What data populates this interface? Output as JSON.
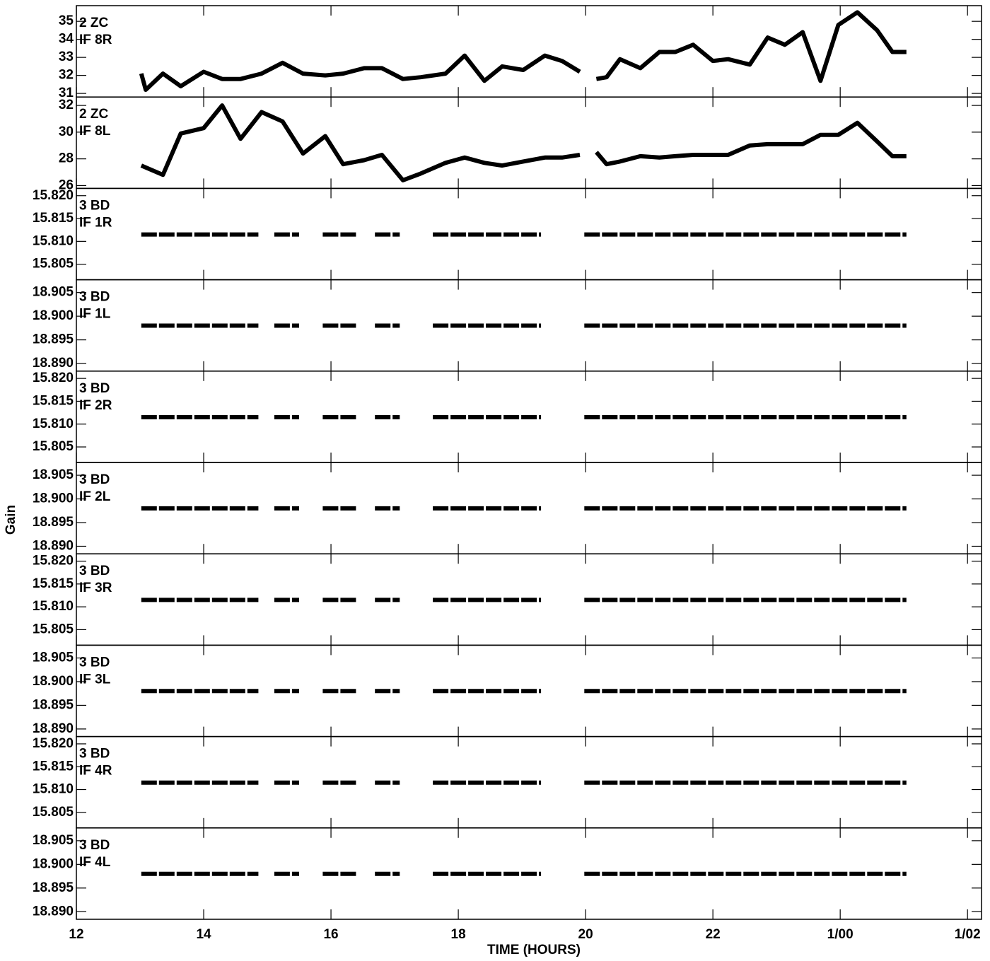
{
  "chart_data": {
    "type": "line",
    "xlabel": "TIME (HOURS)",
    "ylabel": "Gain",
    "xlim": [
      12,
      26.22
    ],
    "xticks": [
      12,
      14,
      16,
      18,
      20,
      22,
      {
        "value": 24,
        "label": "1/00"
      },
      {
        "value": 26,
        "label": "1/02"
      }
    ],
    "color": "#000000",
    "panels": [
      {
        "station": "2 ZC",
        "label": "IF 8R",
        "ylim": [
          30.8,
          35.87
        ],
        "yticks": [
          31,
          32,
          33,
          34,
          35
        ],
        "x": [
          13.02,
          13.09,
          13.36,
          13.64,
          14.0,
          14.29,
          14.58,
          14.91,
          15.24,
          15.56,
          15.91,
          16.19,
          16.52,
          16.8,
          17.13,
          17.41,
          17.8,
          18.1,
          18.41,
          18.69,
          19.02,
          19.36,
          19.63,
          19.91,
          null,
          20.17,
          20.33,
          20.54,
          20.86,
          21.16,
          21.41,
          21.69,
          22.0,
          22.24,
          22.58,
          22.86,
          23.13,
          23.41,
          23.69,
          23.97,
          24.27,
          24.58,
          24.82,
          25.04
        ],
        "values": [
          32.1,
          31.2,
          32.1,
          31.4,
          32.2,
          31.8,
          31.8,
          32.1,
          32.7,
          32.1,
          32.0,
          32.1,
          32.4,
          32.4,
          31.8,
          31.9,
          32.1,
          33.1,
          31.7,
          32.5,
          32.3,
          33.1,
          32.8,
          32.2,
          null,
          31.8,
          31.9,
          32.9,
          32.4,
          33.3,
          33.3,
          33.7,
          32.8,
          32.9,
          32.6,
          34.1,
          33.7,
          34.4,
          31.7,
          34.8,
          35.5,
          34.5,
          33.3,
          33.3
        ]
      },
      {
        "station": "2 ZC",
        "label": "IF 8L",
        "ylim": [
          25.79,
          32.63
        ],
        "yticks": [
          26,
          28,
          30,
          32
        ],
        "x": [
          13.02,
          13.36,
          13.64,
          14.0,
          14.29,
          14.58,
          14.91,
          15.24,
          15.56,
          15.91,
          16.19,
          16.52,
          16.8,
          17.13,
          17.41,
          17.8,
          18.1,
          18.41,
          18.69,
          19.02,
          19.36,
          19.63,
          19.91,
          null,
          20.17,
          20.33,
          20.54,
          20.86,
          21.16,
          21.41,
          21.69,
          22.0,
          22.24,
          22.58,
          22.86,
          23.13,
          23.41,
          23.69,
          23.97,
          24.27,
          24.58,
          24.82,
          25.04
        ],
        "values": [
          27.5,
          26.8,
          29.9,
          30.3,
          32.0,
          29.5,
          31.5,
          30.8,
          28.4,
          29.7,
          27.6,
          27.9,
          28.3,
          26.4,
          26.9,
          27.7,
          28.1,
          27.7,
          27.5,
          27.8,
          28.1,
          28.1,
          28.3,
          null,
          28.5,
          27.6,
          27.8,
          28.2,
          28.1,
          28.2,
          28.3,
          28.3,
          28.3,
          29.0,
          29.1,
          29.1,
          29.1,
          29.8,
          29.8,
          30.7,
          29.3,
          28.2,
          28.2
        ]
      },
      {
        "station": "3 BD",
        "label": "IF 1R",
        "ylim": [
          15.8016,
          15.8216
        ],
        "yticks": [
          {
            "value": 15.82,
            "label": "15.820"
          },
          15.815,
          {
            "value": 15.81,
            "label": "15.810"
          },
          15.805
        ],
        "x": [
          13.02,
          14.86,
          null,
          15.11,
          15.5,
          null,
          15.87,
          16.41,
          null,
          16.69,
          17.08,
          null,
          17.6,
          19.3,
          null,
          19.98,
          25.04
        ],
        "values": [
          15.8115,
          15.8115,
          null,
          15.8115,
          15.8115,
          null,
          15.8115,
          15.8115,
          null,
          15.8115,
          15.8115,
          null,
          15.8115,
          15.8115,
          null,
          15.8115,
          15.8115
        ]
      },
      {
        "station": "3 BD",
        "label": "IF 1L",
        "ylim": [
          18.8884,
          18.9077
        ],
        "yticks": [
          18.905,
          {
            "value": 18.9,
            "label": "18.900"
          },
          18.895,
          {
            "value": 18.89,
            "label": "18.890"
          }
        ],
        "x": [
          13.02,
          14.86,
          null,
          15.11,
          15.5,
          null,
          15.87,
          16.41,
          null,
          16.69,
          17.08,
          null,
          17.6,
          19.3,
          null,
          19.98,
          25.04
        ],
        "values": [
          18.898,
          18.898,
          null,
          18.898,
          18.898,
          null,
          18.898,
          18.898,
          null,
          18.898,
          18.898,
          null,
          18.898,
          18.898,
          null,
          18.898,
          18.898
        ]
      },
      {
        "station": "3 BD",
        "label": "IF 2R",
        "ylim": [
          15.8016,
          15.8216
        ],
        "yticks": [
          {
            "value": 15.82,
            "label": "15.820"
          },
          15.815,
          {
            "value": 15.81,
            "label": "15.810"
          },
          15.805
        ],
        "x": [
          13.02,
          14.86,
          null,
          15.11,
          15.5,
          null,
          15.87,
          16.41,
          null,
          16.69,
          17.08,
          null,
          17.6,
          19.3,
          null,
          19.98,
          25.04
        ],
        "values": [
          15.8115,
          15.8115,
          null,
          15.8115,
          15.8115,
          null,
          15.8115,
          15.8115,
          null,
          15.8115,
          15.8115,
          null,
          15.8115,
          15.8115,
          null,
          15.8115,
          15.8115
        ]
      },
      {
        "station": "3 BD",
        "label": "IF 2L",
        "ylim": [
          18.8884,
          18.9077
        ],
        "yticks": [
          18.905,
          {
            "value": 18.9,
            "label": "18.900"
          },
          18.895,
          {
            "value": 18.89,
            "label": "18.890"
          }
        ],
        "x": [
          13.02,
          14.86,
          null,
          15.11,
          15.5,
          null,
          15.87,
          16.41,
          null,
          16.69,
          17.08,
          null,
          17.6,
          19.3,
          null,
          19.98,
          25.04
        ],
        "values": [
          18.898,
          18.898,
          null,
          18.898,
          18.898,
          null,
          18.898,
          18.898,
          null,
          18.898,
          18.898,
          null,
          18.898,
          18.898,
          null,
          18.898,
          18.898
        ]
      },
      {
        "station": "3 BD",
        "label": "IF 3R",
        "ylim": [
          15.8016,
          15.8216
        ],
        "yticks": [
          {
            "value": 15.82,
            "label": "15.820"
          },
          15.815,
          {
            "value": 15.81,
            "label": "15.810"
          },
          15.805
        ],
        "x": [
          13.02,
          14.86,
          null,
          15.11,
          15.5,
          null,
          15.87,
          16.41,
          null,
          16.69,
          17.08,
          null,
          17.6,
          19.3,
          null,
          19.98,
          25.04
        ],
        "values": [
          15.8115,
          15.8115,
          null,
          15.8115,
          15.8115,
          null,
          15.8115,
          15.8115,
          null,
          15.8115,
          15.8115,
          null,
          15.8115,
          15.8115,
          null,
          15.8115,
          15.8115
        ]
      },
      {
        "station": "3 BD",
        "label": "IF 3L",
        "ylim": [
          18.8884,
          18.9077
        ],
        "yticks": [
          18.905,
          {
            "value": 18.9,
            "label": "18.900"
          },
          18.895,
          {
            "value": 18.89,
            "label": "18.890"
          }
        ],
        "x": [
          13.02,
          14.86,
          null,
          15.11,
          15.5,
          null,
          15.87,
          16.41,
          null,
          16.69,
          17.08,
          null,
          17.6,
          19.3,
          null,
          19.98,
          25.04
        ],
        "values": [
          18.898,
          18.898,
          null,
          18.898,
          18.898,
          null,
          18.898,
          18.898,
          null,
          18.898,
          18.898,
          null,
          18.898,
          18.898,
          null,
          18.898,
          18.898
        ]
      },
      {
        "station": "3 BD",
        "label": "IF 4R",
        "ylim": [
          15.8016,
          15.8216
        ],
        "yticks": [
          {
            "value": 15.82,
            "label": "15.820"
          },
          15.815,
          {
            "value": 15.81,
            "label": "15.810"
          },
          15.805
        ],
        "x": [
          13.02,
          14.86,
          null,
          15.11,
          15.5,
          null,
          15.87,
          16.41,
          null,
          16.69,
          17.08,
          null,
          17.6,
          19.3,
          null,
          19.98,
          25.04
        ],
        "values": [
          15.8115,
          15.8115,
          null,
          15.8115,
          15.8115,
          null,
          15.8115,
          15.8115,
          null,
          15.8115,
          15.8115,
          null,
          15.8115,
          15.8115,
          null,
          15.8115,
          15.8115
        ]
      },
      {
        "station": "3 BD",
        "label": "IF 4L",
        "ylim": [
          18.8884,
          18.9077
        ],
        "yticks": [
          18.905,
          {
            "value": 18.9,
            "label": "18.900"
          },
          18.895,
          {
            "value": 18.89,
            "label": "18.890"
          }
        ],
        "x": [
          13.02,
          14.86,
          null,
          15.11,
          15.5,
          null,
          15.87,
          16.41,
          null,
          16.69,
          17.08,
          null,
          17.6,
          19.3,
          null,
          19.98,
          25.04
        ],
        "values": [
          18.898,
          18.898,
          null,
          18.898,
          18.898,
          null,
          18.898,
          18.898,
          null,
          18.898,
          18.898,
          null,
          18.898,
          18.898,
          null,
          18.898,
          18.898
        ]
      }
    ]
  }
}
